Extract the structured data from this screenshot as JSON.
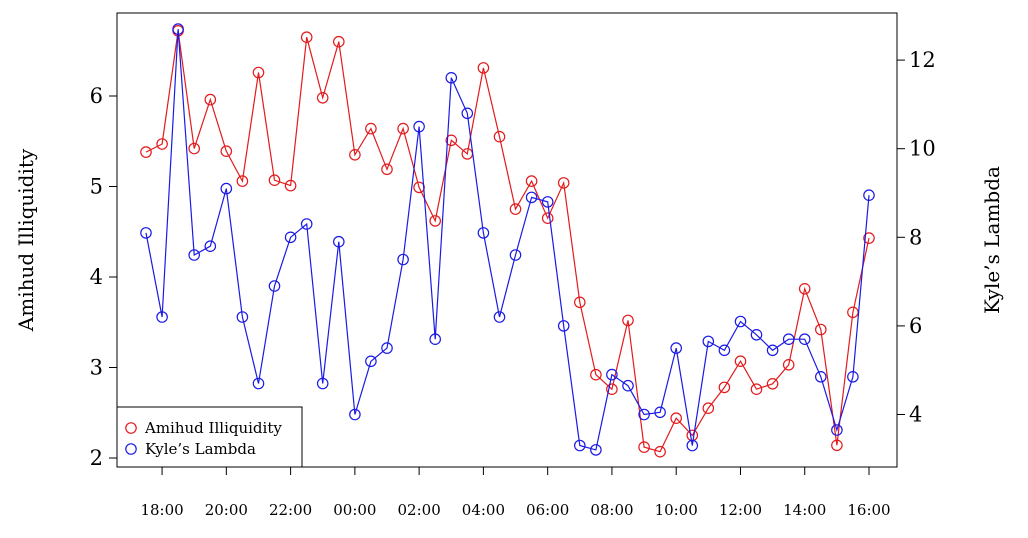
{
  "chart_data": {
    "type": "line",
    "title": "",
    "x_tick_labels": [
      "18:00",
      "20:00",
      "22:00",
      "00:00",
      "02:00",
      "04:00",
      "06:00",
      "08:00",
      "10:00",
      "12:00",
      "14:00",
      "16:00"
    ],
    "ylabel_left": "Amihud Illiquidity",
    "ylabel_right": "Kyle’s Lambda",
    "ylim_left": [
      2.0,
      6.75
    ],
    "ylim_right": [
      3.2,
      12.75
    ],
    "yticks_left": [
      2,
      3,
      4,
      5,
      6
    ],
    "yticks_right": [
      4,
      6,
      8,
      10,
      12
    ],
    "legend_position": "bottom-left",
    "series": [
      {
        "name": "Amihud Illiquidity",
        "axis": "left",
        "color": "#e41a1c",
        "values": [
          5.38,
          5.47,
          6.72,
          5.42,
          5.96,
          5.39,
          5.06,
          6.26,
          5.07,
          5.01,
          6.65,
          5.98,
          6.6,
          5.35,
          5.64,
          5.19,
          5.64,
          4.99,
          4.62,
          5.51,
          5.36,
          6.31,
          5.55,
          4.75,
          5.06,
          4.65,
          5.04,
          3.72,
          2.92,
          2.76,
          3.52,
          2.12,
          2.07,
          2.44,
          2.25,
          2.55,
          2.78,
          3.07,
          2.76,
          2.82,
          3.03,
          3.87,
          3.42,
          2.14,
          3.61,
          4.43
        ]
      },
      {
        "name": "Kyle’s Lambda",
        "axis": "right",
        "color": "#1a1ae6",
        "values": [
          8.1,
          6.2,
          12.7,
          7.6,
          7.8,
          9.1,
          6.2,
          4.7,
          6.9,
          8.0,
          8.3,
          4.7,
          7.9,
          4.0,
          5.2,
          5.5,
          7.5,
          10.5,
          5.7,
          11.6,
          10.8,
          8.1,
          6.2,
          7.6,
          8.9,
          8.8,
          6.0,
          3.3,
          3.2,
          4.9,
          4.65,
          4.0,
          4.05,
          5.5,
          3.3,
          5.65,
          5.45,
          6.1,
          5.8,
          5.45,
          5.7,
          5.7,
          4.85,
          3.65,
          4.85,
          8.95
        ]
      }
    ]
  }
}
